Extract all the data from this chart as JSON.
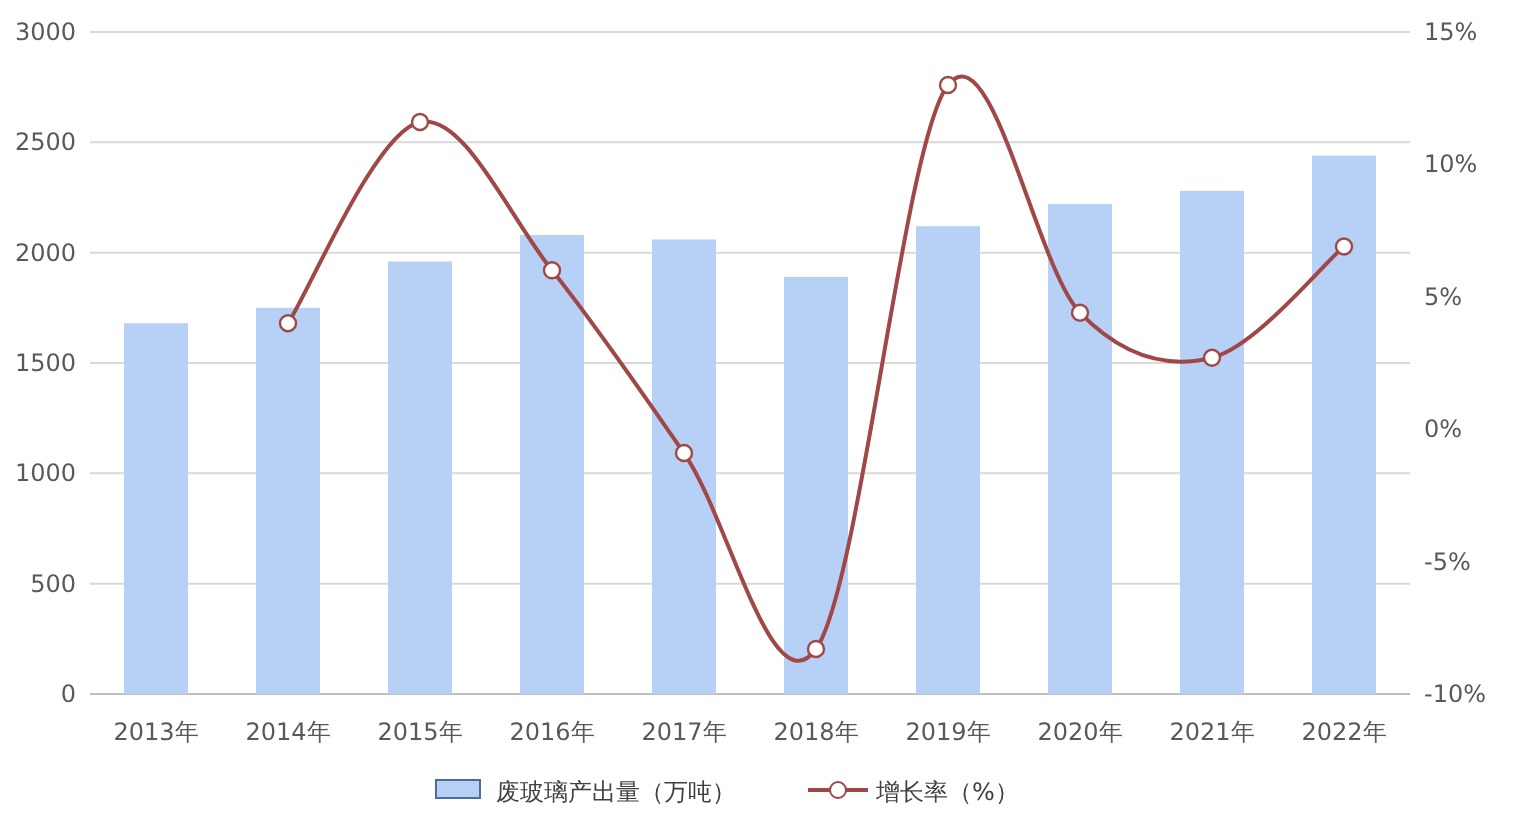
{
  "chart_data": {
    "type": "bar",
    "categories": [
      "2013年",
      "2014年",
      "2015年",
      "2016年",
      "2017年",
      "2018年",
      "2019年",
      "2020年",
      "2021年",
      "2022年"
    ],
    "series": [
      {
        "name": "废玻璃产出量（万吨）",
        "color": "#b7d0f6",
        "values": [
          1680,
          1750,
          1960,
          2080,
          2060,
          1890,
          2120,
          2220,
          2280,
          2440
        ]
      },
      {
        "name": "增长率（%）",
        "type": "line",
        "axis": "y2",
        "color": "#a04848",
        "marker": "circle",
        "values": [
          null,
          4.0,
          11.6,
          6.0,
          -0.9,
          -8.3,
          13.0,
          4.4,
          2.7,
          6.9
        ]
      }
    ],
    "ylim": [
      0,
      3000
    ],
    "yticks": [
      0,
      500,
      1000,
      1500,
      2000,
      2500,
      3000
    ],
    "y2lim": [
      -10,
      15
    ],
    "y2ticks": [
      {
        "value": -10,
        "label": "-10%"
      },
      {
        "value": -5,
        "label": "-5%"
      },
      {
        "value": 0,
        "label": "0%"
      },
      {
        "value": 5,
        "label": "5%"
      },
      {
        "value": 10,
        "label": "10%"
      },
      {
        "value": 15,
        "label": "15%"
      }
    ],
    "grid": "y",
    "legend": "bottom"
  }
}
